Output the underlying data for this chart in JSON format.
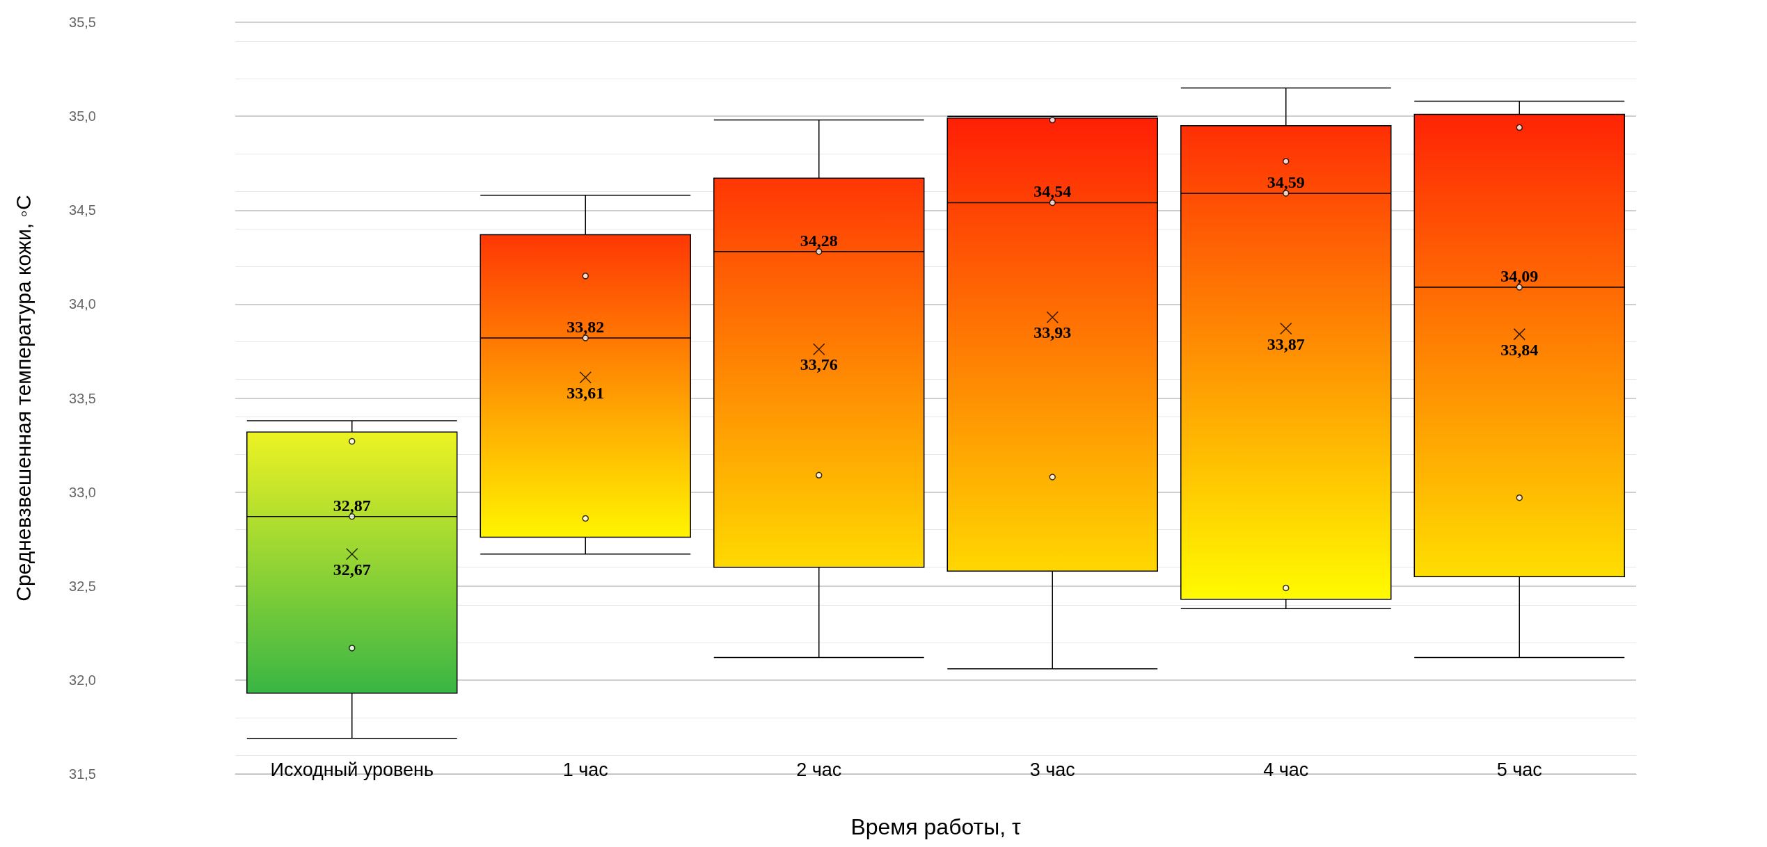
{
  "chart_data": {
    "type": "box",
    "xlabel": "Время работы, τ",
    "ylabel": "Средневзвешенная температура кожи, ◦C",
    "categories": [
      "Исходный уровень",
      "1 час",
      "2 час",
      "3 час",
      "4 час",
      "5 час"
    ],
    "boxes": [
      {
        "low": 31.69,
        "q1": 31.93,
        "median": 32.87,
        "q3": 33.32,
        "high": 33.38
      },
      {
        "low": 32.67,
        "q1": 32.76,
        "median": 33.82,
        "q3": 34.37,
        "high": 34.58
      },
      {
        "low": 32.12,
        "q1": 32.6,
        "median": 34.28,
        "q3": 34.67,
        "high": 34.98
      },
      {
        "low": 32.06,
        "q1": 32.58,
        "median": 34.54,
        "q3": 34.99,
        "high": 35.0
      },
      {
        "low": 32.38,
        "q1": 32.43,
        "median": 34.59,
        "q3": 34.95,
        "high": 35.15
      },
      {
        "low": 32.12,
        "q1": 32.55,
        "median": 34.09,
        "q3": 35.01,
        "high": 35.08
      }
    ],
    "colors": [
      [
        "#f5f522",
        "#1aab4a"
      ],
      [
        "#ff1e05",
        "#ffff00"
      ],
      [
        "#ff1e05",
        "#ffff00"
      ],
      [
        "#ff1e05",
        "#ffff00"
      ],
      [
        "#ff1e05",
        "#ffff00"
      ],
      [
        "#ff1e05",
        "#ffff00"
      ]
    ],
    "series": [
      {
        "type": "scatter",
        "marker": "cross",
        "color": "#000000",
        "x": [
          "Исходный уровень",
          "1 час",
          "2 час",
          "3 час",
          "4 час",
          "5 час"
        ],
        "values": [
          32.67,
          33.61,
          33.76,
          33.93,
          33.87,
          33.84
        ]
      },
      {
        "type": "scatter",
        "marker": "circle",
        "color": "#000000",
        "x": [
          "Исходный уровень",
          "Исходный уровень",
          "Исходный уровень",
          "1 час",
          "1 час",
          "1 час",
          "2 час",
          "2 час",
          "3 час",
          "3 час",
          "3 час",
          "4 час",
          "4 час",
          "4 час",
          "5 час",
          "5 час",
          "5 час"
        ],
        "values": [
          33.27,
          32.87,
          32.17,
          34.15,
          33.82,
          32.86,
          34.28,
          33.09,
          34.98,
          34.54,
          33.08,
          34.76,
          34.59,
          32.49,
          34.94,
          34.09,
          32.97
        ]
      }
    ],
    "ylim": [
      31.5,
      35.5
    ],
    "yticks": [
      {
        "value": 31.5,
        "label": "31,5"
      },
      {
        "value": 32,
        "label": "32,0"
      },
      {
        "value": 32.5,
        "label": "32,5"
      },
      {
        "value": 33,
        "label": "33,0"
      },
      {
        "value": 33.5,
        "label": "33,5"
      },
      {
        "value": 34,
        "label": "34,0"
      },
      {
        "value": 34.5,
        "label": "34,5"
      },
      {
        "value": 35,
        "label": "35,0"
      },
      {
        "value": 35.5,
        "label": "35,5"
      }
    ],
    "grid": true,
    "annotations": [
      {
        "text": "32,87",
        "x": "Исходный уровень",
        "y": 32.87
      },
      {
        "text": "32,67",
        "x": "Исходный уровень",
        "y": 32.67
      },
      {
        "text": "33,82",
        "x": "1 час",
        "y": 33.82
      },
      {
        "text": "33,61",
        "x": "1 час",
        "y": 33.61
      },
      {
        "text": "34,28",
        "x": "2 час",
        "y": 34.28
      },
      {
        "text": "33,76",
        "x": "2 час",
        "y": 33.76
      },
      {
        "text": "34,54",
        "x": "3 час",
        "y": 34.54
      },
      {
        "text": "33,93",
        "x": "3 час",
        "y": 33.93
      },
      {
        "text": "34,59",
        "x": "4 час",
        "y": 34.59
      },
      {
        "text": "33,87",
        "x": "4 час",
        "y": 33.87
      },
      {
        "text": "34,09",
        "x": "5 час",
        "y": 34.09
      },
      {
        "text": "33,84",
        "x": "5 час",
        "y": 33.84
      }
    ]
  }
}
